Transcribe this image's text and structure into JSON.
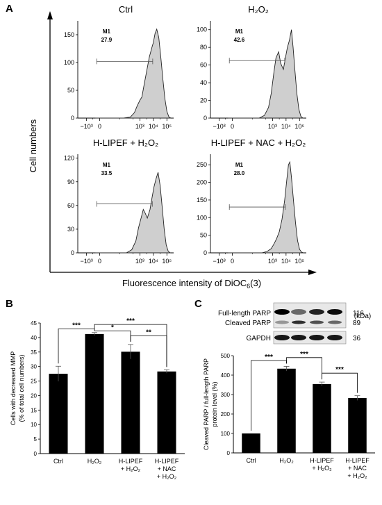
{
  "panels": {
    "a": "A",
    "b": "B",
    "c": "C"
  },
  "chart_data": [
    {
      "type": "histogram",
      "panel": "A",
      "ylabel": "Cell numbers",
      "xlabel": "Fluorescence intensity of DiOC6(3)",
      "xtick_labels": [
        "−10³",
        "0",
        "10³",
        "10⁴",
        "10⁵"
      ],
      "histograms": [
        {
          "title": "Ctrl",
          "gate_label": "M1",
          "gate_value": "27.9",
          "ylim": [
            0,
            175
          ],
          "yticks": [
            0,
            50,
            100,
            150
          ],
          "gate_x_range": [
            -0.2,
            3.95
          ],
          "gate_y": 102,
          "curve": [
            [
              -0.3,
              0
            ],
            [
              1.8,
              0
            ],
            [
              2.3,
              2
            ],
            [
              2.6,
              10
            ],
            [
              2.8,
              22
            ],
            [
              3.0,
              32
            ],
            [
              3.15,
              38
            ],
            [
              3.3,
              58
            ],
            [
              3.5,
              84
            ],
            [
              3.7,
              110
            ],
            [
              3.9,
              128
            ],
            [
              4.0,
              136
            ],
            [
              4.12,
              152
            ],
            [
              4.25,
              160
            ],
            [
              4.4,
              145
            ],
            [
              4.55,
              110
            ],
            [
              4.7,
              70
            ],
            [
              4.85,
              35
            ],
            [
              5.0,
              12
            ],
            [
              5.15,
              2
            ],
            [
              5.3,
              0
            ]
          ]
        },
        {
          "title": "H₂O₂",
          "gate_label": "M1",
          "gate_value": "42.6",
          "ylim": [
            0,
            110
          ],
          "yticks": [
            0,
            20,
            40,
            60,
            80,
            100
          ],
          "gate_x_range": [
            -0.2,
            3.9
          ],
          "gate_y": 65,
          "curve": [
            [
              -0.3,
              0
            ],
            [
              2.0,
              0
            ],
            [
              2.4,
              3
            ],
            [
              2.7,
              12
            ],
            [
              2.9,
              28
            ],
            [
              3.1,
              52
            ],
            [
              3.25,
              68
            ],
            [
              3.45,
              75
            ],
            [
              3.6,
              62
            ],
            [
              3.8,
              55
            ],
            [
              3.95,
              68
            ],
            [
              4.1,
              80
            ],
            [
              4.25,
              88
            ],
            [
              4.4,
              100
            ],
            [
              4.52,
              80
            ],
            [
              4.65,
              55
            ],
            [
              4.8,
              28
            ],
            [
              4.95,
              10
            ],
            [
              5.1,
              2
            ],
            [
              5.25,
              0
            ]
          ]
        },
        {
          "title": "H-LIPEF + H₂O₂",
          "gate_label": "M1",
          "gate_value": "33.5",
          "ylim": [
            0,
            125
          ],
          "yticks": [
            0,
            30,
            60,
            90,
            120
          ],
          "gate_x_range": [
            -0.2,
            3.92
          ],
          "gate_y": 62,
          "curve": [
            [
              -0.3,
              0
            ],
            [
              2.0,
              0
            ],
            [
              2.4,
              4
            ],
            [
              2.7,
              15
            ],
            [
              2.9,
              32
            ],
            [
              3.1,
              45
            ],
            [
              3.25,
              55
            ],
            [
              3.4,
              50
            ],
            [
              3.55,
              44
            ],
            [
              3.75,
              55
            ],
            [
              3.9,
              70
            ],
            [
              4.05,
              84
            ],
            [
              4.2,
              94
            ],
            [
              4.35,
              102
            ],
            [
              4.5,
              85
            ],
            [
              4.65,
              58
            ],
            [
              4.8,
              30
            ],
            [
              4.95,
              10
            ],
            [
              5.1,
              2
            ],
            [
              5.25,
              0
            ]
          ]
        },
        {
          "title": "H-LIPEF + NAC + H₂O₂",
          "gate_label": "M1",
          "gate_value": "28.0",
          "ylim": [
            0,
            280
          ],
          "yticks": [
            0,
            50,
            100,
            150,
            200,
            250
          ],
          "gate_x_range": [
            -0.2,
            3.95
          ],
          "gate_y": 130,
          "curve": [
            [
              -0.3,
              0
            ],
            [
              2.2,
              0
            ],
            [
              2.6,
              4
            ],
            [
              2.9,
              12
            ],
            [
              3.1,
              25
            ],
            [
              3.3,
              40
            ],
            [
              3.5,
              60
            ],
            [
              3.7,
              95
            ],
            [
              3.9,
              150
            ],
            [
              4.05,
              205
            ],
            [
              4.18,
              250
            ],
            [
              4.28,
              258
            ],
            [
              4.4,
              215
            ],
            [
              4.55,
              150
            ],
            [
              4.7,
              85
            ],
            [
              4.85,
              35
            ],
            [
              5.0,
              10
            ],
            [
              5.15,
              2
            ],
            [
              5.3,
              0
            ]
          ]
        }
      ]
    },
    {
      "type": "bar",
      "panel": "B",
      "categories": [
        "Ctrl",
        "H₂O₂",
        "H-LIPEF\n+ H₂O₂",
        "H-LIPEF\n+ NAC\n+ H₂O₂"
      ],
      "values": [
        27.5,
        41.2,
        35.1,
        28.3
      ],
      "errors": [
        2.6,
        0.5,
        2.5,
        0.6
      ],
      "ylabel": "Cells with decreased MMP\n(% of total cell numbers)",
      "ylim": [
        0,
        45
      ],
      "yticks": [
        0,
        5,
        10,
        15,
        20,
        25,
        30,
        35,
        40,
        45
      ],
      "significance": [
        {
          "from": 0,
          "to": 1,
          "label": "***",
          "y": 43.0
        },
        {
          "from": 1,
          "to": 3,
          "label": "***",
          "y": 44.5
        },
        {
          "from": 1,
          "to": 2,
          "label": "*",
          "y": 42.3
        },
        {
          "from": 2,
          "to": 3,
          "label": "**",
          "y": 40.6
        }
      ]
    },
    {
      "type": "bar",
      "panel": "C",
      "categories": [
        "Ctrl",
        "H₂O₂",
        "H-LIPEF\n+ H₂O₂",
        "H-LIPEF\n+ NAC\n+ H₂O₂"
      ],
      "values": [
        100,
        433,
        354,
        282
      ],
      "errors": [
        0,
        12,
        10,
        12
      ],
      "ylabel": "Cleaved PARP / full-length PARP\nprotein level (%)",
      "ylim": [
        0,
        500
      ],
      "yticks": [
        0,
        100,
        200,
        300,
        400,
        500
      ],
      "significance": [
        {
          "from": 0,
          "to": 1,
          "label": "***",
          "y": 475
        },
        {
          "from": 1,
          "to": 2,
          "label": "***",
          "y": 490
        },
        {
          "from": 2,
          "to": 3,
          "label": "***",
          "y": 410
        }
      ],
      "blot": {
        "unit": "(kDa)",
        "bands": [
          {
            "label": "Full-length PARP",
            "kda": "116"
          },
          {
            "label": "Cleaved PARP",
            "kda": "89"
          },
          {
            "label": "GAPDH",
            "kda": "36"
          }
        ]
      }
    }
  ]
}
